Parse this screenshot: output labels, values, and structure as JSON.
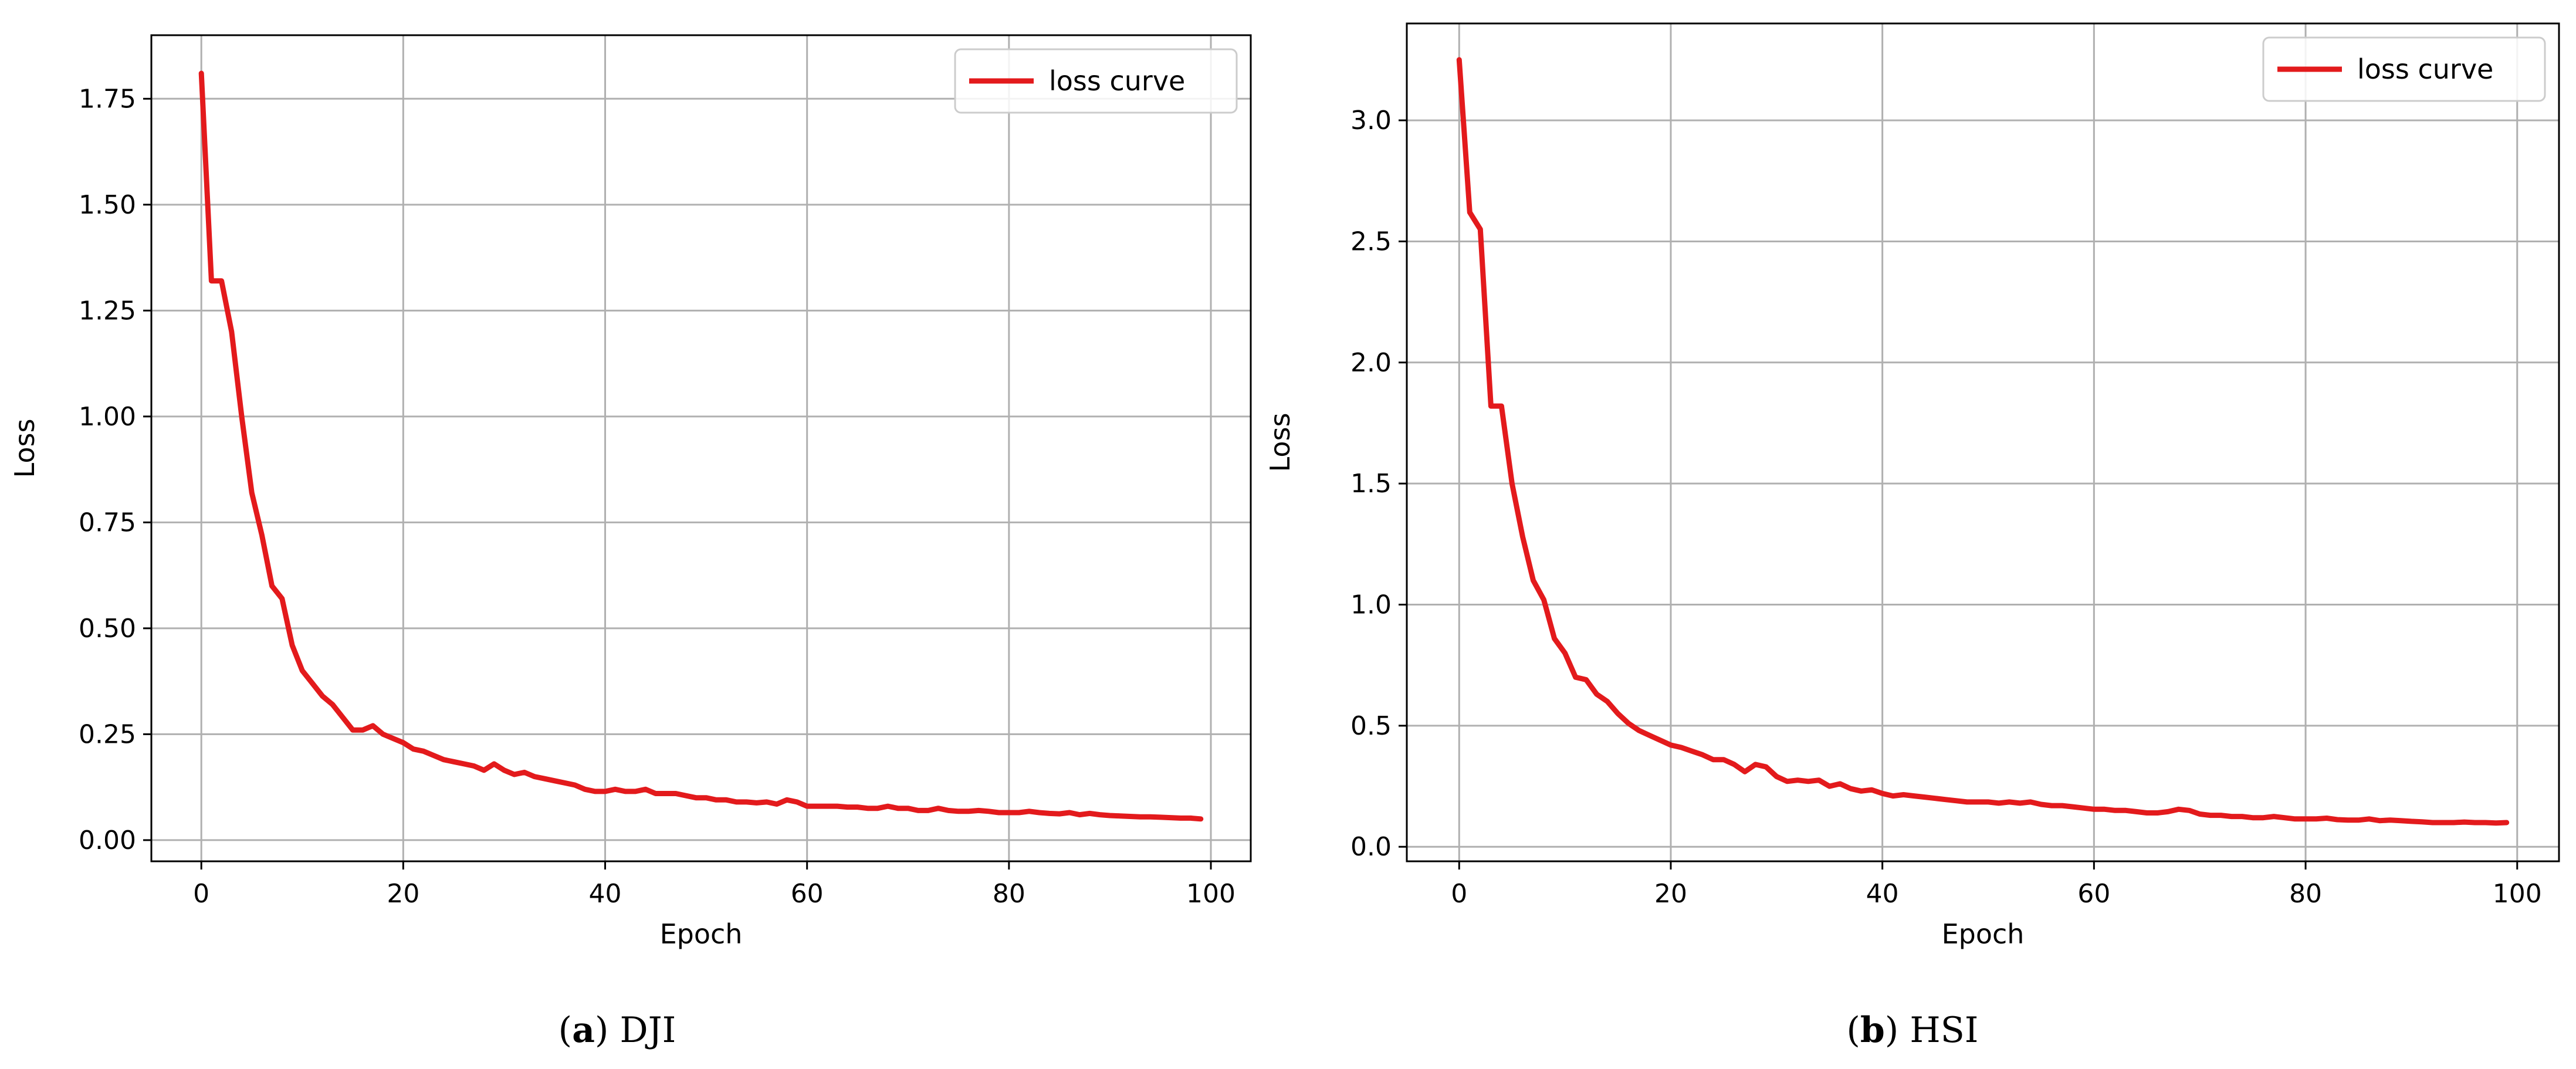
{
  "chart_data": [
    {
      "type": "line",
      "xlabel": "Epoch",
      "ylabel": "Loss",
      "xlim": [
        -4.95,
        103.95
      ],
      "ylim": [
        -0.05,
        1.9
      ],
      "xticks": [
        0,
        20,
        40,
        60,
        80,
        100
      ],
      "xtick_labels": [
        "0",
        "20",
        "40",
        "60",
        "80",
        "100"
      ],
      "yticks": [
        0,
        0.25,
        0.5,
        0.75,
        1.0,
        1.25,
        1.5,
        1.75
      ],
      "ytick_labels": [
        "0.00",
        "0.25",
        "0.50",
        "0.75",
        "1.00",
        "1.25",
        "1.50",
        "1.75"
      ],
      "grid": true,
      "legend_position": "top-right",
      "series": [
        {
          "name": "loss curve",
          "color": "#e31a1c",
          "x": [
            0,
            1,
            2,
            3,
            4,
            5,
            6,
            7,
            8,
            9,
            10,
            11,
            12,
            13,
            14,
            15,
            16,
            17,
            18,
            19,
            20,
            21,
            22,
            23,
            24,
            25,
            26,
            27,
            28,
            29,
            30,
            31,
            32,
            33,
            34,
            35,
            36,
            37,
            38,
            39,
            40,
            41,
            42,
            43,
            44,
            45,
            46,
            47,
            48,
            49,
            50,
            51,
            52,
            53,
            54,
            55,
            56,
            57,
            58,
            59,
            60,
            61,
            62,
            63,
            64,
            65,
            66,
            67,
            68,
            69,
            70,
            71,
            72,
            73,
            74,
            75,
            76,
            77,
            78,
            79,
            80,
            81,
            82,
            83,
            84,
            85,
            86,
            87,
            88,
            89,
            90,
            91,
            92,
            93,
            94,
            95,
            96,
            97,
            98,
            99
          ],
          "values": [
            1.81,
            1.32,
            1.32,
            1.2,
            1.0,
            0.82,
            0.72,
            0.6,
            0.57,
            0.46,
            0.4,
            0.37,
            0.34,
            0.32,
            0.29,
            0.26,
            0.26,
            0.27,
            0.25,
            0.24,
            0.23,
            0.215,
            0.21,
            0.2,
            0.19,
            0.185,
            0.18,
            0.175,
            0.165,
            0.18,
            0.165,
            0.155,
            0.16,
            0.15,
            0.145,
            0.14,
            0.135,
            0.13,
            0.12,
            0.115,
            0.115,
            0.12,
            0.115,
            0.115,
            0.12,
            0.11,
            0.11,
            0.11,
            0.105,
            0.1,
            0.1,
            0.095,
            0.095,
            0.09,
            0.09,
            0.088,
            0.09,
            0.085,
            0.095,
            0.09,
            0.08,
            0.08,
            0.08,
            0.08,
            0.078,
            0.078,
            0.075,
            0.075,
            0.08,
            0.075,
            0.075,
            0.07,
            0.07,
            0.075,
            0.07,
            0.068,
            0.068,
            0.07,
            0.068,
            0.065,
            0.065,
            0.065,
            0.068,
            0.065,
            0.063,
            0.062,
            0.065,
            0.06,
            0.063,
            0.06,
            0.058,
            0.057,
            0.056,
            0.055,
            0.055,
            0.054,
            0.053,
            0.052,
            0.052,
            0.05
          ]
        }
      ]
    },
    {
      "type": "line",
      "xlabel": "Epoch",
      "ylabel": "Loss",
      "xlim": [
        -4.95,
        103.95
      ],
      "ylim": [
        -0.06,
        3.4
      ],
      "xticks": [
        0,
        20,
        40,
        60,
        80,
        100
      ],
      "xtick_labels": [
        "0",
        "20",
        "40",
        "60",
        "80",
        "100"
      ],
      "yticks": [
        0,
        0.5,
        1.0,
        1.5,
        2.0,
        2.5,
        3.0
      ],
      "ytick_labels": [
        "0.0",
        "0.5",
        "1.0",
        "1.5",
        "2.0",
        "2.5",
        "3.0"
      ],
      "grid": true,
      "legend_position": "top-right",
      "series": [
        {
          "name": "loss curve",
          "color": "#e31a1c",
          "x": [
            0,
            1,
            2,
            3,
            4,
            5,
            6,
            7,
            8,
            9,
            10,
            11,
            12,
            13,
            14,
            15,
            16,
            17,
            18,
            19,
            20,
            21,
            22,
            23,
            24,
            25,
            26,
            27,
            28,
            29,
            30,
            31,
            32,
            33,
            34,
            35,
            36,
            37,
            38,
            39,
            40,
            41,
            42,
            43,
            44,
            45,
            46,
            47,
            48,
            49,
            50,
            51,
            52,
            53,
            54,
            55,
            56,
            57,
            58,
            59,
            60,
            61,
            62,
            63,
            64,
            65,
            66,
            67,
            68,
            69,
            70,
            71,
            72,
            73,
            74,
            75,
            76,
            77,
            78,
            79,
            80,
            81,
            82,
            83,
            84,
            85,
            86,
            87,
            88,
            89,
            90,
            91,
            92,
            93,
            94,
            95,
            96,
            97,
            98,
            99
          ],
          "values": [
            3.25,
            2.62,
            2.55,
            1.82,
            1.82,
            1.5,
            1.28,
            1.1,
            1.02,
            0.86,
            0.8,
            0.7,
            0.69,
            0.63,
            0.6,
            0.55,
            0.51,
            0.48,
            0.46,
            0.44,
            0.42,
            0.41,
            0.395,
            0.38,
            0.36,
            0.36,
            0.34,
            0.31,
            0.34,
            0.33,
            0.29,
            0.27,
            0.275,
            0.27,
            0.275,
            0.25,
            0.26,
            0.24,
            0.23,
            0.235,
            0.22,
            0.21,
            0.215,
            0.21,
            0.205,
            0.2,
            0.195,
            0.19,
            0.185,
            0.185,
            0.185,
            0.18,
            0.185,
            0.18,
            0.185,
            0.175,
            0.17,
            0.17,
            0.165,
            0.16,
            0.155,
            0.155,
            0.15,
            0.15,
            0.145,
            0.14,
            0.14,
            0.145,
            0.155,
            0.15,
            0.135,
            0.13,
            0.13,
            0.125,
            0.125,
            0.12,
            0.12,
            0.125,
            0.12,
            0.115,
            0.115,
            0.115,
            0.118,
            0.112,
            0.11,
            0.11,
            0.115,
            0.108,
            0.11,
            0.108,
            0.105,
            0.103,
            0.1,
            0.1,
            0.1,
            0.102,
            0.1,
            0.1,
            0.098,
            0.1
          ]
        }
      ]
    }
  ],
  "captions": [
    {
      "letter": "a",
      "text": " DJI"
    },
    {
      "letter": "b",
      "text": " HSI"
    }
  ]
}
